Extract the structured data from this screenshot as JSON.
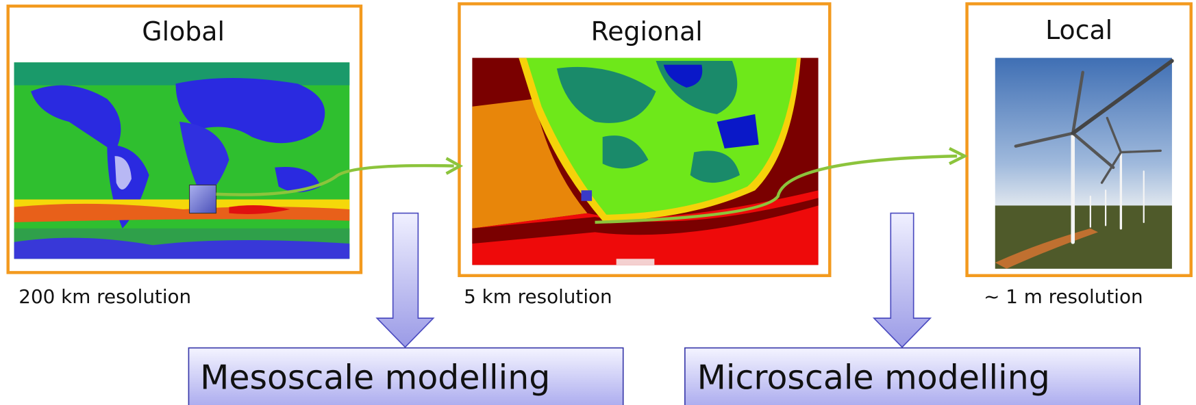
{
  "panels": [
    {
      "title": "Global",
      "resolution": "200 km resolution"
    },
    {
      "title": "Regional",
      "resolution": "5 km resolution"
    },
    {
      "title": "Local",
      "resolution": "~ 1 m resolution"
    }
  ],
  "modelling": [
    {
      "label": "Mesoscale modelling"
    },
    {
      "label": "Microscale modelling"
    }
  ]
}
